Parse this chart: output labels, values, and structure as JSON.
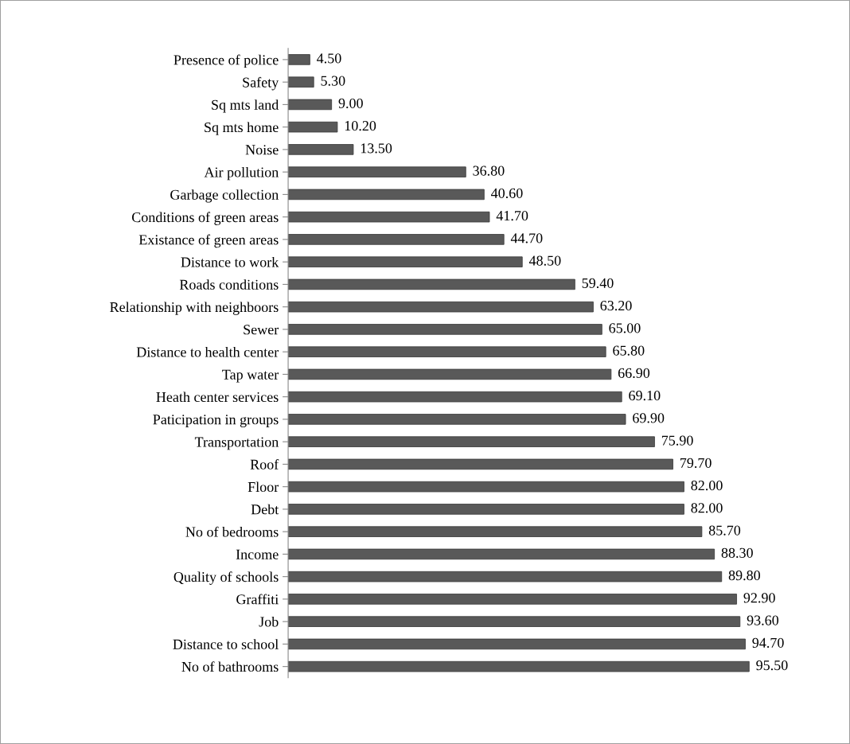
{
  "chart_data": {
    "type": "bar",
    "orientation": "horizontal",
    "color": "#595959",
    "categories": [
      "Presence of police",
      "Safety",
      "Sq mts land",
      "Sq mts home",
      "Noise",
      "Air pollution",
      "Garbage collection",
      "Conditions of green areas",
      "Existance of green areas",
      "Distance to work",
      "Roads conditions",
      "Relationship with neighboors",
      "Sewer",
      "Distance to health center",
      "Tap water",
      "Heath center services",
      "Paticipation in groups",
      "Transportation",
      "Roof",
      "Floor",
      "Debt",
      "No of bedrooms",
      "Income",
      "Quality of schools",
      "Graffiti",
      "Job",
      "Distance to school",
      "No of bathrooms"
    ],
    "values": [
      4.5,
      5.3,
      9.0,
      10.2,
      13.5,
      36.8,
      40.6,
      41.7,
      44.7,
      48.5,
      59.4,
      63.2,
      65.0,
      65.8,
      66.9,
      69.1,
      69.9,
      75.9,
      79.7,
      82.0,
      82.0,
      85.7,
      88.3,
      89.8,
      92.9,
      93.6,
      94.7,
      95.5
    ],
    "value_labels": [
      "4.50",
      "5.30",
      "9.00",
      "10.20",
      "13.50",
      "36.80",
      "40.60",
      "41.70",
      "44.70",
      "48.50",
      "59.40",
      "63.20",
      "65.00",
      "65.80",
      "66.90",
      "69.10",
      "69.90",
      "75.90",
      "79.70",
      "82.00",
      "82.00",
      "85.70",
      "88.30",
      "89.80",
      "92.90",
      "93.60",
      "94.70",
      "95.50"
    ]
  }
}
